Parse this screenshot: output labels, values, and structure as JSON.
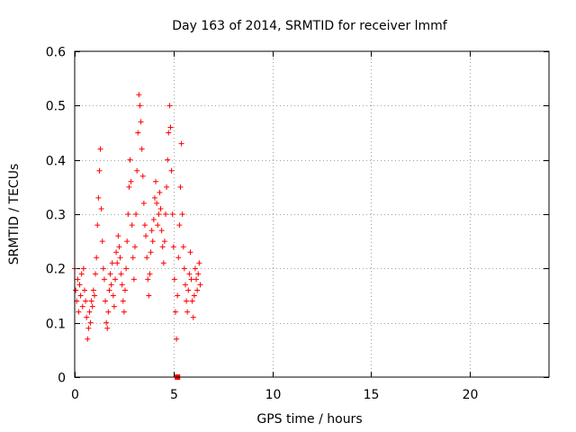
{
  "chart_data": {
    "type": "scatter",
    "title": "Day 163 of 2014, SRMTID for receiver lmmf",
    "xlabel": "GPS time / hours",
    "ylabel": "SRMTID / TECUs",
    "xlim": [
      0,
      24
    ],
    "ylim": [
      0,
      0.6
    ],
    "xticks": [
      0,
      5,
      10,
      15,
      20
    ],
    "yticks": [
      0,
      0.1,
      0.2,
      0.3,
      0.4,
      0.5,
      0.6
    ],
    "xtick_labels": [
      "0",
      "5",
      "10",
      "15",
      "20"
    ],
    "ytick_labels": [
      "0",
      "0.1",
      "0.2",
      "0.3",
      "0.4",
      "0.5",
      "0.6"
    ],
    "grid": true,
    "series_color": "#ff0000",
    "zero_marker": {
      "x": 5.2,
      "y": 0
    },
    "series": [
      {
        "name": "SRMTID",
        "marker": "plus",
        "points": [
          [
            0.0,
            0.2
          ],
          [
            0.05,
            0.16
          ],
          [
            0.1,
            0.14
          ],
          [
            0.15,
            0.18
          ],
          [
            0.2,
            0.12
          ],
          [
            0.25,
            0.17
          ],
          [
            0.3,
            0.15
          ],
          [
            0.35,
            0.19
          ],
          [
            0.4,
            0.13
          ],
          [
            0.45,
            0.2
          ],
          [
            0.5,
            0.16
          ],
          [
            0.55,
            0.14
          ],
          [
            0.6,
            0.11
          ],
          [
            0.65,
            0.07
          ],
          [
            0.7,
            0.09
          ],
          [
            0.75,
            0.12
          ],
          [
            0.8,
            0.1
          ],
          [
            0.85,
            0.14
          ],
          [
            0.9,
            0.13
          ],
          [
            0.95,
            0.16
          ],
          [
            1.0,
            0.15
          ],
          [
            1.05,
            0.19
          ],
          [
            1.1,
            0.22
          ],
          [
            1.15,
            0.28
          ],
          [
            1.2,
            0.33
          ],
          [
            1.25,
            0.38
          ],
          [
            1.3,
            0.42
          ],
          [
            1.35,
            0.31
          ],
          [
            1.4,
            0.25
          ],
          [
            1.45,
            0.2
          ],
          [
            1.5,
            0.18
          ],
          [
            1.55,
            0.14
          ],
          [
            1.6,
            0.1
          ],
          [
            1.65,
            0.09
          ],
          [
            1.7,
            0.12
          ],
          [
            1.75,
            0.16
          ],
          [
            1.8,
            0.19
          ],
          [
            1.85,
            0.17
          ],
          [
            1.9,
            0.21
          ],
          [
            1.95,
            0.15
          ],
          [
            2.0,
            0.13
          ],
          [
            2.05,
            0.18
          ],
          [
            2.1,
            0.23
          ],
          [
            2.15,
            0.21
          ],
          [
            2.2,
            0.26
          ],
          [
            2.25,
            0.24
          ],
          [
            2.3,
            0.22
          ],
          [
            2.35,
            0.19
          ],
          [
            2.4,
            0.17
          ],
          [
            2.45,
            0.14
          ],
          [
            2.5,
            0.12
          ],
          [
            2.55,
            0.16
          ],
          [
            2.6,
            0.2
          ],
          [
            2.65,
            0.25
          ],
          [
            2.7,
            0.3
          ],
          [
            2.75,
            0.35
          ],
          [
            2.8,
            0.4
          ],
          [
            2.85,
            0.36
          ],
          [
            2.9,
            0.28
          ],
          [
            2.95,
            0.22
          ],
          [
            3.0,
            0.18
          ],
          [
            3.05,
            0.24
          ],
          [
            3.1,
            0.3
          ],
          [
            3.15,
            0.38
          ],
          [
            3.2,
            0.45
          ],
          [
            3.25,
            0.52
          ],
          [
            3.3,
            0.5
          ],
          [
            3.35,
            0.47
          ],
          [
            3.4,
            0.42
          ],
          [
            3.45,
            0.37
          ],
          [
            3.5,
            0.32
          ],
          [
            3.55,
            0.28
          ],
          [
            3.6,
            0.26
          ],
          [
            3.65,
            0.22
          ],
          [
            3.7,
            0.18
          ],
          [
            3.75,
            0.15
          ],
          [
            3.8,
            0.19
          ],
          [
            3.85,
            0.23
          ],
          [
            3.9,
            0.27
          ],
          [
            3.95,
            0.25
          ],
          [
            4.0,
            0.29
          ],
          [
            4.05,
            0.33
          ],
          [
            4.1,
            0.36
          ],
          [
            4.15,
            0.32
          ],
          [
            4.2,
            0.28
          ],
          [
            4.25,
            0.3
          ],
          [
            4.3,
            0.34
          ],
          [
            4.35,
            0.31
          ],
          [
            4.4,
            0.27
          ],
          [
            4.45,
            0.24
          ],
          [
            4.5,
            0.21
          ],
          [
            4.55,
            0.25
          ],
          [
            4.6,
            0.3
          ],
          [
            4.65,
            0.35
          ],
          [
            4.7,
            0.4
          ],
          [
            4.75,
            0.45
          ],
          [
            4.8,
            0.5
          ],
          [
            4.85,
            0.46
          ],
          [
            4.9,
            0.38
          ],
          [
            4.95,
            0.3
          ],
          [
            5.0,
            0.24
          ],
          [
            5.05,
            0.18
          ],
          [
            5.1,
            0.12
          ],
          [
            5.15,
            0.07
          ],
          [
            5.2,
            0.15
          ],
          [
            5.25,
            0.22
          ],
          [
            5.3,
            0.28
          ],
          [
            5.35,
            0.35
          ],
          [
            5.4,
            0.43
          ],
          [
            5.45,
            0.3
          ],
          [
            5.5,
            0.24
          ],
          [
            5.55,
            0.2
          ],
          [
            5.6,
            0.17
          ],
          [
            5.65,
            0.14
          ],
          [
            5.7,
            0.12
          ],
          [
            5.75,
            0.16
          ],
          [
            5.8,
            0.19
          ],
          [
            5.85,
            0.23
          ],
          [
            5.9,
            0.18
          ],
          [
            5.95,
            0.14
          ],
          [
            6.0,
            0.11
          ],
          [
            6.05,
            0.15
          ],
          [
            6.1,
            0.2
          ],
          [
            6.15,
            0.18
          ],
          [
            6.2,
            0.16
          ],
          [
            6.25,
            0.19
          ],
          [
            6.3,
            0.21
          ],
          [
            6.35,
            0.17
          ]
        ]
      }
    ]
  }
}
